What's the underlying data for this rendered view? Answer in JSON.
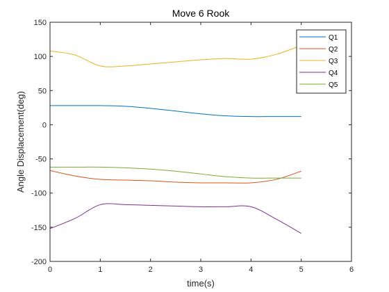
{
  "chart_data": {
    "type": "line",
    "title": "Move 6 Rook",
    "xlabel": "time(s)",
    "ylabel": "Angle Displacement(deg)",
    "xlim": [
      0,
      6
    ],
    "ylim": [
      -200,
      150
    ],
    "xticks": [
      0,
      1,
      2,
      3,
      4,
      5,
      6
    ],
    "yticks": [
      -200,
      -150,
      -100,
      -50,
      0,
      50,
      100,
      150
    ],
    "grid": false,
    "legend_position": "top-right",
    "x": [
      0,
      0.5,
      1,
      1.5,
      2,
      2.5,
      3,
      3.5,
      4,
      4.5,
      5
    ],
    "series": [
      {
        "name": "Q1",
        "color": "#0072BD",
        "values": [
          28,
          28,
          28,
          27,
          24,
          20,
          16,
          13,
          12,
          12,
          12
        ]
      },
      {
        "name": "Q2",
        "color": "#D95319",
        "values": [
          -67,
          -75,
          -80,
          -81,
          -82,
          -84,
          -85,
          -85,
          -85,
          -80,
          -68
        ]
      },
      {
        "name": "Q3",
        "color": "#EDB120",
        "values": [
          108,
          102,
          86,
          86,
          89,
          92,
          95,
          97,
          96,
          103,
          116
        ]
      },
      {
        "name": "Q4",
        "color": "#7E2F8E",
        "values": [
          -152,
          -137,
          -117,
          -117,
          -118,
          -119,
          -120,
          -120,
          -120,
          -138,
          -159
        ]
      },
      {
        "name": "Q5",
        "color": "#77AC30",
        "values": [
          -62,
          -62,
          -62,
          -63,
          -65,
          -68,
          -72,
          -76,
          -78,
          -78,
          -78
        ]
      }
    ]
  }
}
